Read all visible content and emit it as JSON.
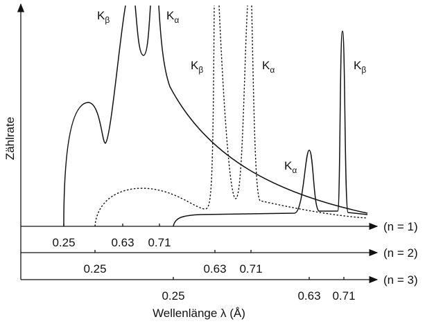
{
  "axis_label_y": "Zählrate",
  "axis_label_x": "Wellenlänge λ (Å)",
  "orders": [
    {
      "label": "(n = 1)",
      "ticks": [
        "0.25",
        "0.63",
        "0.71"
      ]
    },
    {
      "label": "(n = 2)",
      "ticks": [
        "0.25",
        "0.63",
        "0.71"
      ]
    },
    {
      "label": "(n = 3)",
      "ticks": [
        "0.25",
        "0.63",
        "0.71"
      ]
    }
  ],
  "peak_labels": [
    {
      "main": "K",
      "sub": "β"
    },
    {
      "main": "K",
      "sub": "α"
    },
    {
      "main": "K",
      "sub": "β"
    },
    {
      "main": "K",
      "sub": "α"
    },
    {
      "main": "K",
      "sub": "β"
    },
    {
      "main": "K",
      "sub": "α"
    }
  ]
}
